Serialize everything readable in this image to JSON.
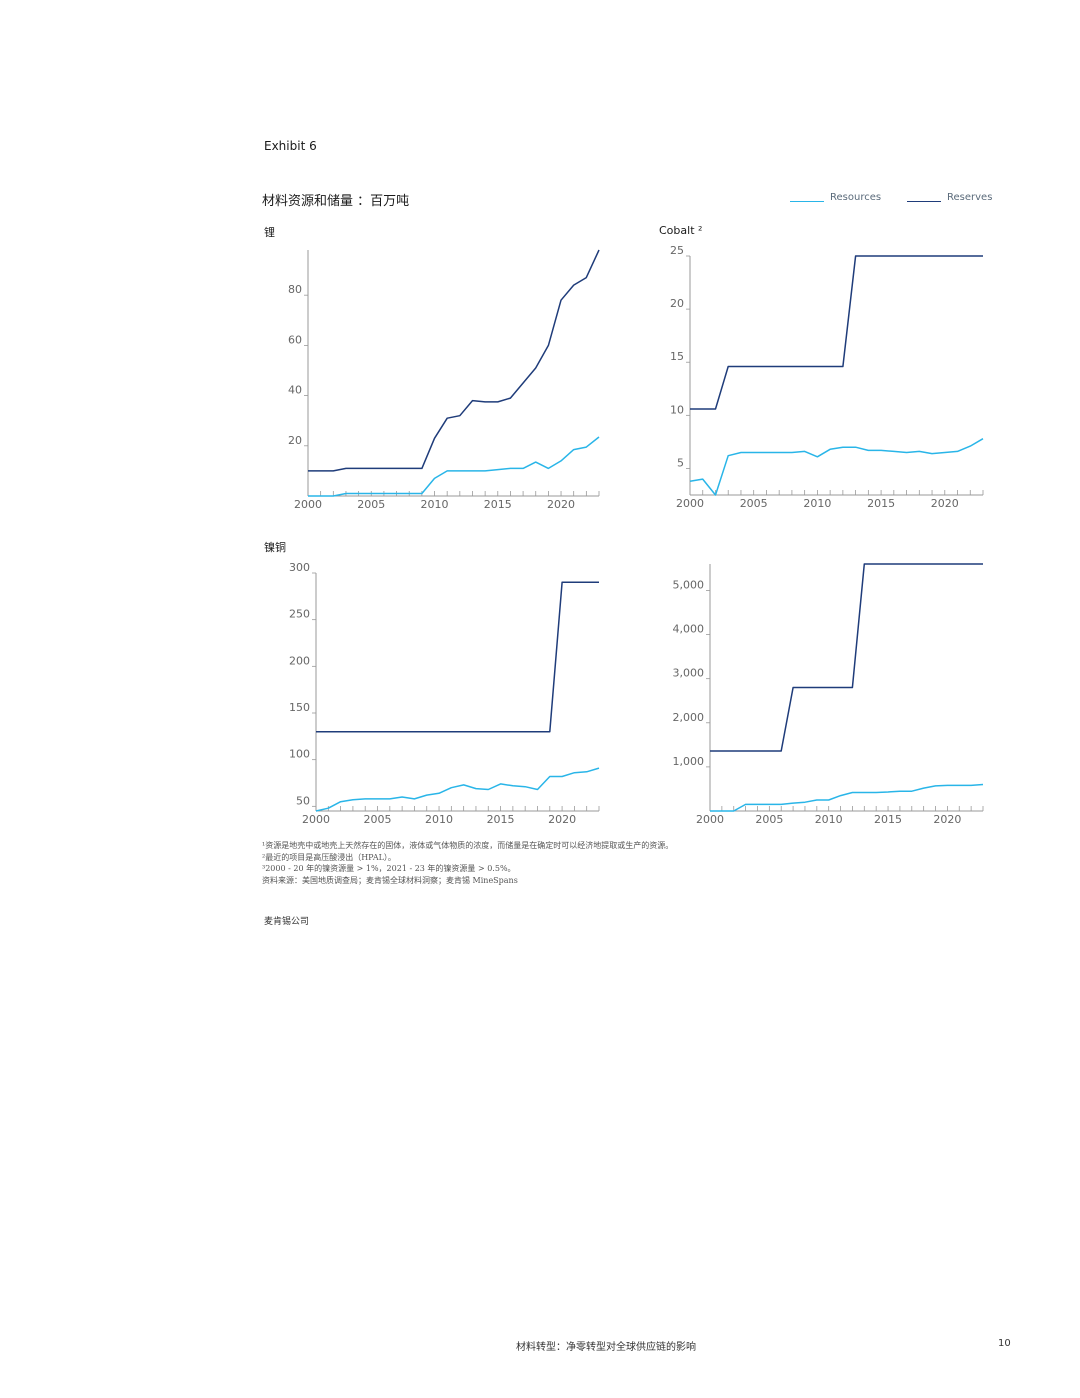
{
  "header": {
    "exhibit": "Exhibit 6",
    "title": "材料资源和储量 ：百万吨"
  },
  "legend": {
    "resources": "Resources",
    "reserves": "Reserves"
  },
  "colors": {
    "resources": "#29b5e8",
    "reserves": "#1f3c7a",
    "axis": "#999999"
  },
  "chart_data": [
    {
      "type": "line",
      "title": "锂",
      "xlim": [
        2000,
        2023
      ],
      "x_ticks": [
        2000,
        2005,
        2010,
        2015,
        2020
      ],
      "ylim": [
        0,
        98
      ],
      "y_ticks": [
        20,
        40,
        60,
        80
      ],
      "y_tick_labels": [
        "20",
        "40",
        "60",
        "80"
      ],
      "x": [
        2000,
        2001,
        2002,
        2003,
        2004,
        2005,
        2006,
        2007,
        2008,
        2009,
        2010,
        2011,
        2012,
        2013,
        2014,
        2015,
        2016,
        2017,
        2018,
        2019,
        2020,
        2021,
        2022,
        2023
      ],
      "series": [
        {
          "name": "Resources",
          "values": [
            0,
            0,
            0,
            1,
            1,
            1,
            1,
            1,
            1,
            1,
            7,
            10,
            10,
            10,
            10,
            10.5,
            11,
            11,
            13.5,
            11,
            14,
            18.5,
            19.5,
            23.5
          ]
        },
        {
          "name": "Reserves",
          "values": [
            10,
            10,
            10,
            11,
            11,
            11,
            11,
            11,
            11,
            11,
            23,
            31,
            32,
            38,
            37.5,
            37.5,
            39,
            45,
            51,
            60,
            78,
            84,
            87,
            98
          ]
        }
      ]
    },
    {
      "type": "line",
      "title": "Cobalt ²",
      "xlim": [
        2000,
        2023
      ],
      "x_ticks": [
        2000,
        2005,
        2010,
        2015,
        2020
      ],
      "ylim": [
        2.5,
        25
      ],
      "y_ticks": [
        5,
        10,
        15,
        20,
        25
      ],
      "y_tick_labels": [
        "5",
        "10",
        "15",
        "20",
        "25"
      ],
      "x": [
        2000,
        2001,
        2002,
        2003,
        2004,
        2005,
        2006,
        2007,
        2008,
        2009,
        2010,
        2011,
        2012,
        2013,
        2014,
        2015,
        2016,
        2017,
        2018,
        2019,
        2020,
        2021,
        2022,
        2023
      ],
      "series": [
        {
          "name": "Resources",
          "values": [
            3.8,
            4,
            2.5,
            6.2,
            6.5,
            6.5,
            6.5,
            6.5,
            6.5,
            6.6,
            6.1,
            6.8,
            7,
            7,
            6.7,
            6.7,
            6.6,
            6.5,
            6.6,
            6.4,
            6.5,
            6.6,
            7.1,
            7.8
          ]
        },
        {
          "name": "Reserves",
          "values": [
            10.6,
            10.6,
            10.6,
            14.6,
            14.6,
            14.6,
            14.6,
            14.6,
            14.6,
            14.6,
            14.6,
            14.6,
            14.6,
            25,
            25,
            25,
            25,
            25,
            25,
            25,
            25,
            25,
            25,
            25
          ]
        }
      ]
    },
    {
      "type": "line",
      "title": "镍铜",
      "xlim": [
        2000,
        2023
      ],
      "x_ticks": [
        2000,
        2005,
        2010,
        2015,
        2020
      ],
      "ylim": [
        45,
        300
      ],
      "y_ticks": [
        50,
        100,
        150,
        200,
        250,
        300
      ],
      "y_tick_labels": [
        "50",
        "100",
        "150",
        "200",
        "250",
        "300"
      ],
      "x": [
        2000,
        2001,
        2002,
        2003,
        2004,
        2005,
        2006,
        2007,
        2008,
        2009,
        2010,
        2011,
        2012,
        2013,
        2014,
        2015,
        2016,
        2017,
        2018,
        2019,
        2020,
        2021,
        2022,
        2023
      ],
      "series": [
        {
          "name": "Resources",
          "values": [
            45,
            48,
            55,
            57,
            58,
            58,
            58,
            60,
            58,
            62,
            64,
            70,
            73,
            69,
            68,
            74,
            72,
            71,
            68,
            82,
            82,
            86,
            87,
            91
          ]
        },
        {
          "name": "Reserves",
          "values": [
            130,
            130,
            130,
            130,
            130,
            130,
            130,
            130,
            130,
            130,
            130,
            130,
            130,
            130,
            130,
            130,
            130,
            130,
            130,
            130,
            290,
            290,
            290,
            290
          ]
        }
      ]
    },
    {
      "type": "line",
      "title": "",
      "xlim": [
        2000,
        2023
      ],
      "x_ticks": [
        2000,
        2005,
        2010,
        2015,
        2020
      ],
      "ylim": [
        0,
        5600
      ],
      "y_ticks": [
        1000,
        2000,
        3000,
        4000,
        5000
      ],
      "y_tick_labels": [
        "1,000",
        "2,000",
        "3,000",
        "4,000",
        "5,000"
      ],
      "x": [
        2000,
        2001,
        2002,
        2003,
        2004,
        2005,
        2006,
        2007,
        2008,
        2009,
        2010,
        2011,
        2012,
        2013,
        2014,
        2015,
        2016,
        2017,
        2018,
        2019,
        2020,
        2021,
        2022,
        2023
      ],
      "series": [
        {
          "name": "Resources",
          "values": [
            0,
            0,
            0,
            150,
            150,
            150,
            150,
            180,
            200,
            250,
            250,
            350,
            420,
            420,
            420,
            430,
            450,
            450,
            520,
            570,
            580,
            580,
            580,
            600
          ]
        },
        {
          "name": "Reserves",
          "values": [
            1360,
            1360,
            1360,
            1360,
            1360,
            1360,
            1360,
            2800,
            2800,
            2800,
            2800,
            2800,
            2800,
            5600,
            5600,
            5600,
            5600,
            5600,
            5600,
            5600,
            5600,
            5600,
            5600,
            5600
          ]
        }
      ]
    }
  ],
  "notes": [
    "¹资源是地壳中或地壳上天然存在的固体，液体或气体物质的浓度，而储量是在确定时可以经济地提取或生产的资源。",
    "²最近的项目是高压酸浸出（HPAL）。",
    "³2000 - 20 年的镍资源量 > 1%，2021 - 23 年的镍资源量 > 0.5%。",
    "资料来源：美国地质调查局；麦肯锡全球材料洞察；麦肯锡 MineSpans"
  ],
  "company": "麦肯锡公司",
  "footer": {
    "title": "材料转型：净零转型对全球供应链的影响",
    "page": "10"
  }
}
